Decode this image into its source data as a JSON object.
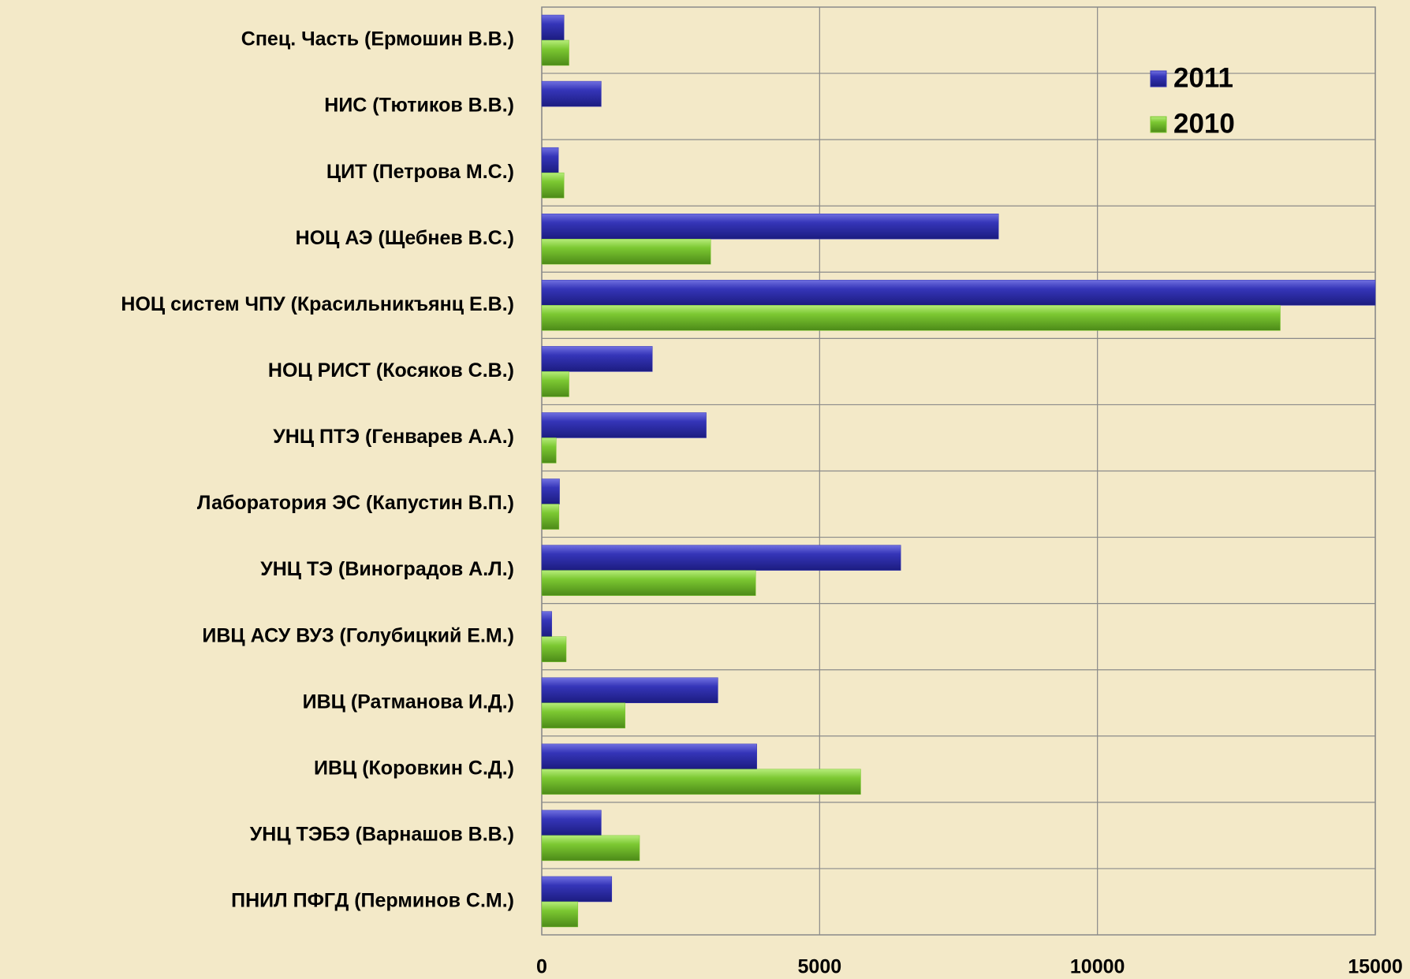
{
  "chart_data": {
    "type": "bar",
    "orientation": "horizontal",
    "categories": [
      "Спец. Часть (Ермошин В.В.)",
      "НИС (Тютиков В.В.)",
      "ЦИТ (Петрова М.С.)",
      "НОЦ АЭ (Щебнев В.С.)",
      "НОЦ систем ЧПУ (Красильникъянц Е.В.)",
      "НОЦ РИСТ  (Косяков С.В.)",
      "УНЦ ПТЭ (Генварев А.А.)",
      "Лаборатория ЭС (Капустин В.П.)",
      "УНЦ ТЭ  (Виноградов А.Л.)",
      "ИВЦ  АСУ ВУЗ  (Голубицкий Е.М.)",
      "ИВЦ (Ратманова И.Д.)",
      "ИВЦ (Коровкин С.Д.)",
      "УНЦ ТЭБЭ (Варнашов В.В.)",
      "ПНИЛ ПФГД (Перминов С.М.)"
    ],
    "series": [
      {
        "name": "2011",
        "color": "#3535b8",
        "values": [
          400,
          1070,
          300,
          8220,
          15000,
          1990,
          2960,
          320,
          6460,
          180,
          3170,
          3870,
          1070,
          1260
        ]
      },
      {
        "name": "2010",
        "color": "#7cc832",
        "values": [
          490,
          null,
          400,
          3040,
          13290,
          490,
          260,
          310,
          3850,
          440,
          1500,
          5740,
          1760,
          650
        ]
      }
    ],
    "xlim": [
      0,
      15000
    ],
    "xticks": [
      0,
      5000,
      10000,
      15000
    ],
    "grid": true,
    "legend": "upper right"
  }
}
